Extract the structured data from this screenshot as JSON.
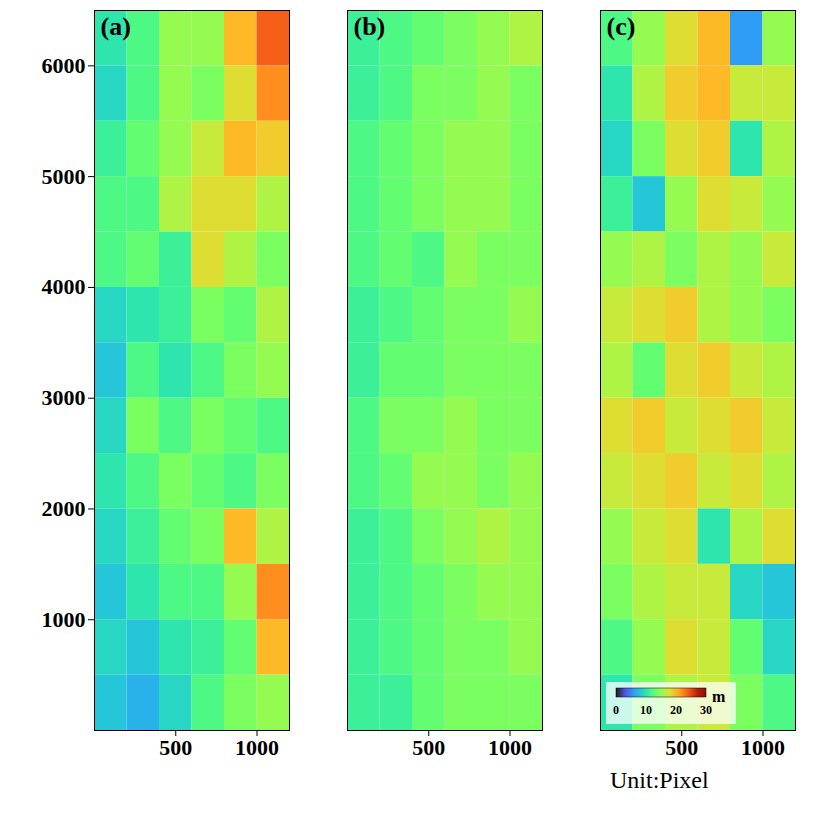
{
  "chart_data": [
    {
      "type": "heatmap",
      "title": "(a)",
      "xlim": [
        0,
        1200
      ],
      "xticks": [
        500,
        1000
      ],
      "ylim": [
        0,
        6500
      ],
      "yticks": [
        1000,
        2000,
        3000,
        4000,
        5000,
        6000
      ],
      "x_bins": [
        0,
        200,
        400,
        600,
        800,
        1000,
        1200
      ],
      "y_bins": [
        6500,
        6000,
        5500,
        5000,
        4500,
        4000,
        3500,
        3000,
        2500,
        2000,
        1500,
        1000,
        500,
        0
      ],
      "values": [
        [
          10,
          12,
          15,
          15,
          20,
          24
        ],
        [
          9,
          12,
          15,
          14,
          18,
          22
        ],
        [
          11,
          13,
          15,
          17,
          20,
          19
        ],
        [
          12,
          12,
          16,
          18,
          18,
          16
        ],
        [
          12,
          13,
          11,
          18,
          16,
          14
        ],
        [
          9,
          10,
          11,
          14,
          13,
          16
        ],
        [
          8,
          12,
          10,
          12,
          14,
          15
        ],
        [
          9,
          14,
          12,
          14,
          13,
          12
        ],
        [
          10,
          12,
          14,
          13,
          12,
          14
        ],
        [
          9,
          11,
          13,
          14,
          20,
          16
        ],
        [
          8,
          10,
          12,
          12,
          15,
          22
        ],
        [
          9,
          8,
          10,
          11,
          13,
          20
        ],
        [
          8,
          7,
          9,
          12,
          14,
          15
        ]
      ]
    },
    {
      "type": "heatmap",
      "title": "(b)",
      "tick_labels": "x",
      "xlim": [
        0,
        1200
      ],
      "xticks": [
        500,
        1000
      ],
      "ylim": [
        0,
        6500
      ],
      "yticks": [
        1000,
        2000,
        3000,
        4000,
        5000,
        6000
      ],
      "x_bins": [
        0,
        200,
        400,
        600,
        800,
        1000,
        1200
      ],
      "y_bins": [
        6500,
        6000,
        5500,
        5000,
        4500,
        4000,
        3500,
        3000,
        2500,
        2000,
        1500,
        1000,
        500,
        0
      ],
      "values": [
        [
          11,
          12,
          13,
          14,
          15,
          16
        ],
        [
          11,
          12,
          14,
          14,
          15,
          14
        ],
        [
          12,
          13,
          14,
          15,
          15,
          14
        ],
        [
          12,
          13,
          14,
          15,
          15,
          14
        ],
        [
          12,
          13,
          12,
          15,
          14,
          14
        ],
        [
          11,
          12,
          13,
          14,
          14,
          15
        ],
        [
          11,
          13,
          13,
          14,
          14,
          14
        ],
        [
          12,
          14,
          14,
          15,
          14,
          14
        ],
        [
          12,
          13,
          15,
          15,
          14,
          15
        ],
        [
          11,
          12,
          14,
          15,
          16,
          15
        ],
        [
          11,
          12,
          13,
          14,
          15,
          15
        ],
        [
          11,
          12,
          13,
          14,
          14,
          15
        ],
        [
          11,
          11,
          13,
          14,
          14,
          14
        ]
      ]
    },
    {
      "type": "heatmap",
      "title": "(c)",
      "tick_labels": "x",
      "annotations": [
        "Unit:Pixel"
      ],
      "xlim": [
        0,
        1200
      ],
      "xticks": [
        500,
        1000
      ],
      "ylim": [
        0,
        6500
      ],
      "yticks": [
        1000,
        2000,
        3000,
        4000,
        5000,
        6000
      ],
      "x_bins": [
        0,
        200,
        400,
        600,
        800,
        1000,
        1200
      ],
      "y_bins": [
        6500,
        6000,
        5500,
        5000,
        4500,
        4000,
        3500,
        3000,
        2500,
        2000,
        1500,
        1000,
        500,
        0
      ],
      "values": [
        [
          12,
          15,
          18,
          20,
          6,
          15
        ],
        [
          10,
          16,
          19,
          20,
          17,
          17
        ],
        [
          9,
          14,
          18,
          19,
          10,
          16
        ],
        [
          11,
          8,
          15,
          18,
          17,
          15
        ],
        [
          15,
          16,
          14,
          16,
          15,
          17
        ],
        [
          17,
          18,
          19,
          16,
          15,
          14
        ],
        [
          16,
          13,
          18,
          19,
          17,
          16
        ],
        [
          18,
          19,
          17,
          18,
          19,
          17
        ],
        [
          17,
          18,
          19,
          17,
          18,
          16
        ],
        [
          15,
          17,
          18,
          10,
          16,
          18
        ],
        [
          14,
          16,
          17,
          17,
          9,
          8
        ],
        [
          12,
          15,
          18,
          17,
          13,
          9
        ],
        [
          10,
          14,
          16,
          17,
          14,
          12
        ]
      ],
      "colorbar": {
        "range": [
          0,
          30
        ],
        "ticks": [
          0,
          10,
          20,
          30
        ],
        "label": "m"
      }
    }
  ]
}
